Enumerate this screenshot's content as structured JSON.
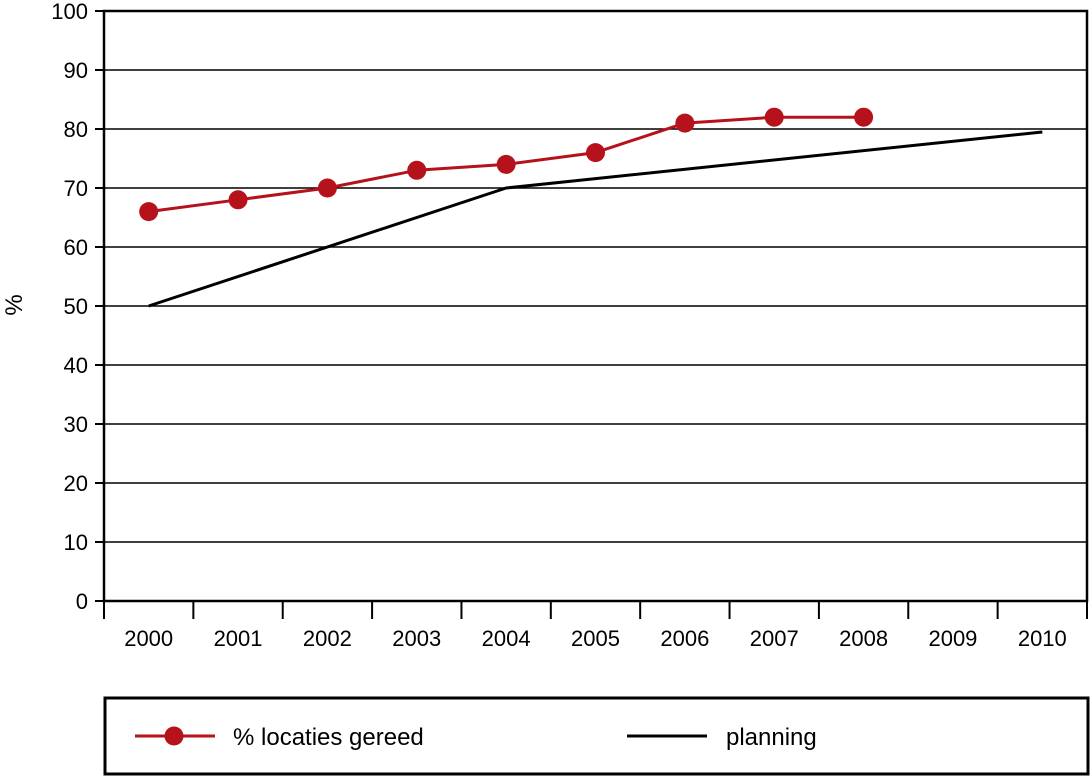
{
  "chart_data": {
    "type": "line",
    "title": "",
    "xlabel": "",
    "ylabel": "%",
    "ylim": [
      0,
      100
    ],
    "yticks": [
      0,
      10,
      20,
      30,
      40,
      50,
      60,
      70,
      80,
      90,
      100
    ],
    "categories": [
      "2000",
      "2001",
      "2002",
      "2003",
      "2004",
      "2005",
      "2006",
      "2007",
      "2008",
      "2009",
      "2010"
    ],
    "grid": "horizontal",
    "legend_position": "bottom",
    "series": [
      {
        "name": "% locaties gereed",
        "color": "#b5121b",
        "marker": "circle",
        "x": [
          "2000",
          "2001",
          "2002",
          "2003",
          "2004",
          "2005",
          "2006",
          "2007",
          "2008"
        ],
        "values": [
          66,
          68,
          70,
          73,
          74,
          76,
          81,
          82,
          82
        ]
      },
      {
        "name": "planning",
        "color": "#000000",
        "marker": "none",
        "x": [
          "2000",
          "2004",
          "2010"
        ],
        "values": [
          50,
          70,
          79.5
        ]
      }
    ]
  }
}
